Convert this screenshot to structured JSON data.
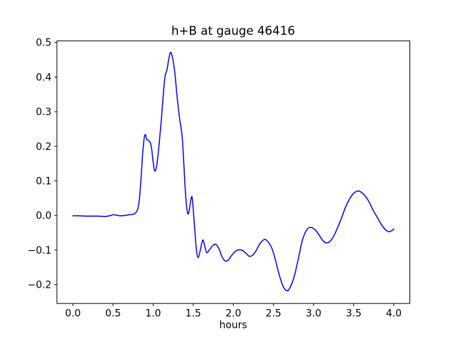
{
  "chart_data": {
    "type": "line",
    "title": "h+B at gauge 46416",
    "xlabel": "hours",
    "ylabel": "",
    "grid": false,
    "legend": null,
    "xlim": [
      -0.2,
      4.2
    ],
    "ylim": [
      -0.2545,
      0.5045
    ],
    "x_ticks": [
      0.0,
      0.5,
      1.0,
      1.5,
      2.0,
      2.5,
      3.0,
      3.5,
      4.0
    ],
    "y_ticks": [
      -0.2,
      -0.1,
      0.0,
      0.1,
      0.2,
      0.3,
      0.4,
      0.5
    ],
    "tick_decimals": 1,
    "axis_color": "#000000",
    "background_color": "#ffffff",
    "series": [
      {
        "name": "h+B",
        "color": "#0000ff",
        "line_width": 1.5,
        "x": [
          0.0,
          0.08,
          0.16,
          0.24,
          0.32,
          0.4,
          0.46,
          0.5,
          0.56,
          0.6,
          0.65,
          0.7,
          0.74,
          0.78,
          0.81,
          0.83,
          0.85,
          0.87,
          0.89,
          0.905,
          0.92,
          0.945,
          0.965,
          0.98,
          1.0,
          1.02,
          1.045,
          1.07,
          1.1,
          1.13,
          1.15,
          1.17,
          1.19,
          1.215,
          1.24,
          1.27,
          1.3,
          1.33,
          1.36,
          1.38,
          1.4,
          1.42,
          1.435,
          1.45,
          1.47,
          1.485,
          1.5,
          1.52,
          1.54,
          1.56,
          1.585,
          1.61,
          1.625,
          1.65,
          1.67,
          1.7,
          1.74,
          1.78,
          1.82,
          1.86,
          1.9,
          1.94,
          1.98,
          2.03,
          2.08,
          2.12,
          2.16,
          2.2,
          2.24,
          2.28,
          2.33,
          2.38,
          2.41,
          2.44,
          2.48,
          2.52,
          2.57,
          2.62,
          2.67,
          2.71,
          2.76,
          2.81,
          2.86,
          2.91,
          2.95,
          3.0,
          3.05,
          3.1,
          3.15,
          3.2,
          3.25,
          3.3,
          3.35,
          3.4,
          3.45,
          3.5,
          3.56,
          3.62,
          3.68,
          3.74,
          3.8,
          3.85,
          3.9,
          3.94,
          3.98,
          4.0
        ],
        "y": [
          -0.001,
          -0.001,
          -0.002,
          -0.002,
          -0.002,
          -0.003,
          -0.001,
          0.002,
          0.0,
          -0.001,
          0.0,
          0.002,
          0.003,
          0.007,
          0.02,
          0.05,
          0.11,
          0.18,
          0.226,
          0.233,
          0.22,
          0.216,
          0.21,
          0.195,
          0.155,
          0.128,
          0.145,
          0.195,
          0.27,
          0.36,
          0.405,
          0.418,
          0.445,
          0.471,
          0.458,
          0.413,
          0.34,
          0.28,
          0.232,
          0.16,
          0.075,
          0.02,
          0.004,
          0.015,
          0.045,
          0.053,
          0.018,
          -0.045,
          -0.1,
          -0.122,
          -0.103,
          -0.077,
          -0.072,
          -0.095,
          -0.108,
          -0.1,
          -0.088,
          -0.083,
          -0.096,
          -0.12,
          -0.132,
          -0.128,
          -0.115,
          -0.103,
          -0.099,
          -0.102,
          -0.11,
          -0.118,
          -0.115,
          -0.103,
          -0.082,
          -0.07,
          -0.071,
          -0.078,
          -0.095,
          -0.125,
          -0.17,
          -0.205,
          -0.218,
          -0.207,
          -0.175,
          -0.125,
          -0.072,
          -0.043,
          -0.035,
          -0.038,
          -0.05,
          -0.068,
          -0.079,
          -0.076,
          -0.06,
          -0.035,
          -0.006,
          0.025,
          0.048,
          0.064,
          0.071,
          0.062,
          0.044,
          0.016,
          -0.008,
          -0.028,
          -0.042,
          -0.047,
          -0.043,
          -0.039
        ]
      }
    ]
  }
}
